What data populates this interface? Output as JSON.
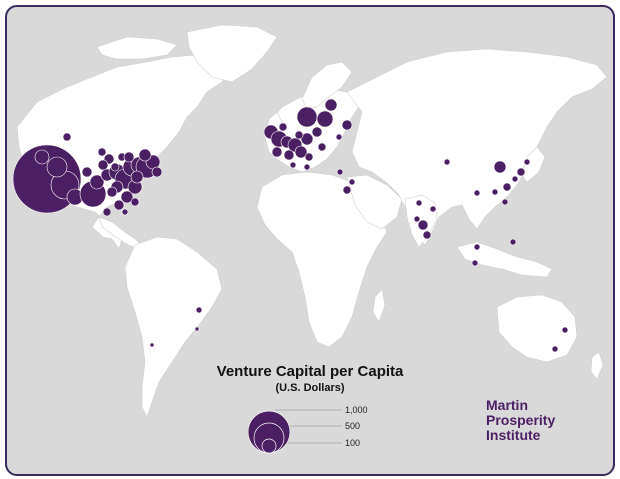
{
  "map": {
    "title": "Venture Capital per Capita",
    "subtitle": "(U.S. Dollars)",
    "legend": {
      "values": [
        1000,
        500,
        100
      ],
      "labels": [
        "1,000",
        "500",
        "100"
      ]
    },
    "colors": {
      "background": "#d9d9d9",
      "land": "#ffffff",
      "bubble": "#4b1f63",
      "frame": "#3a2a5e"
    }
  },
  "logo": {
    "line1": "Martin",
    "line2": "Prosperity",
    "line3": "Institute"
  }
}
